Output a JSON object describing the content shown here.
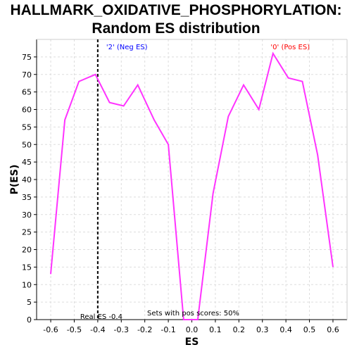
{
  "chart_data": {
    "type": "line",
    "title_line1": "HALLMARK_OXIDATIVE_PHOSPHORYLATION:",
    "title_line2": "Random ES distribution",
    "xlabel": "ES",
    "ylabel": "P(ES)",
    "xlim": [
      -0.66,
      0.66
    ],
    "ylim": [
      0,
      80
    ],
    "xticks": [
      -0.6,
      -0.5,
      -0.4,
      -0.3,
      -0.2,
      -0.1,
      0.0,
      0.1,
      0.2,
      0.3,
      0.4,
      0.5,
      0.6
    ],
    "xtick_labels": [
      "-0.6",
      "-0.5",
      "-0.4",
      "-0.3",
      "-0.2",
      "-0.1",
      "0.0",
      "0.1",
      "0.2",
      "0.3",
      "0.4",
      "0.5",
      "0.6"
    ],
    "yticks": [
      0,
      5,
      10,
      15,
      20,
      25,
      30,
      35,
      40,
      45,
      50,
      55,
      60,
      65,
      70,
      75
    ],
    "grid": true,
    "line_color": "#ff33ff",
    "series": [
      {
        "x": [
          -0.6,
          -0.54,
          -0.48,
          -0.41,
          -0.35,
          -0.29,
          -0.23,
          -0.16,
          -0.1,
          -0.035,
          0.025,
          0.09,
          0.155,
          0.22,
          0.285,
          0.345,
          0.41,
          0.47,
          0.535,
          0.6
        ],
        "y": [
          13,
          57,
          68,
          70,
          62,
          61,
          67,
          57,
          50,
          0,
          0,
          36,
          58,
          67,
          60,
          76,
          69,
          68,
          47,
          15
        ]
      }
    ],
    "real_es": -0.4,
    "annotations": {
      "neg_label": "'2' (Neg ES)",
      "pos_label": "'0' (Pos ES)",
      "real_es_label": "Real ES -0.4",
      "pos_scores_label": "Sets with pos scores: 50%",
      "neg_color": "#0000ff",
      "pos_color": "#ff0000"
    }
  }
}
